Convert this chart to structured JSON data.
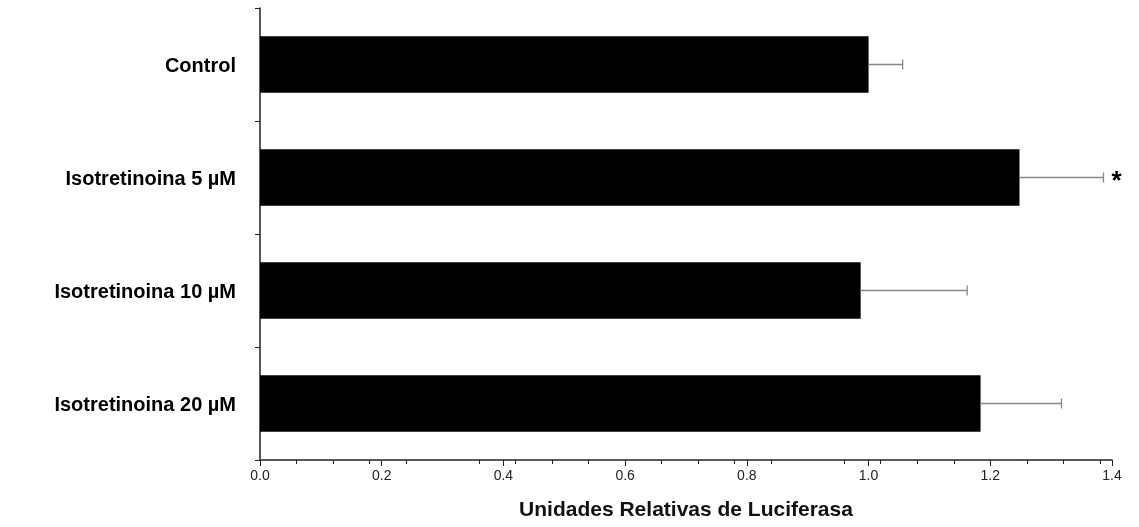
{
  "chart_data": {
    "type": "bar",
    "orientation": "horizontal",
    "xlabel": "Unidades Relativas de Luciferasa",
    "categories": [
      "Control",
      "Isotretinoina 5 µM",
      "Isotretinoina 10 µM",
      "Isotretinoina 20 µM"
    ],
    "values": [
      1.0,
      1.248,
      0.987,
      1.184
    ],
    "errors": [
      [
        1.0,
        1.056
      ],
      [
        1.248,
        1.386
      ],
      [
        0.987,
        1.162
      ],
      [
        1.184,
        1.317
      ]
    ],
    "color": "#000000",
    "xlim": [
      0,
      1.4
    ],
    "xticks": [
      {
        "value": 0,
        "label": "0.0"
      },
      0.2,
      0.4,
      0.6,
      0.8,
      {
        "value": 1,
        "label": "1.0"
      },
      1.2,
      1.4
    ],
    "annotations": [
      {
        "text": "*",
        "x": 1.386,
        "y": "Isotretinoina 5 µM"
      }
    ],
    "grid": false
  }
}
